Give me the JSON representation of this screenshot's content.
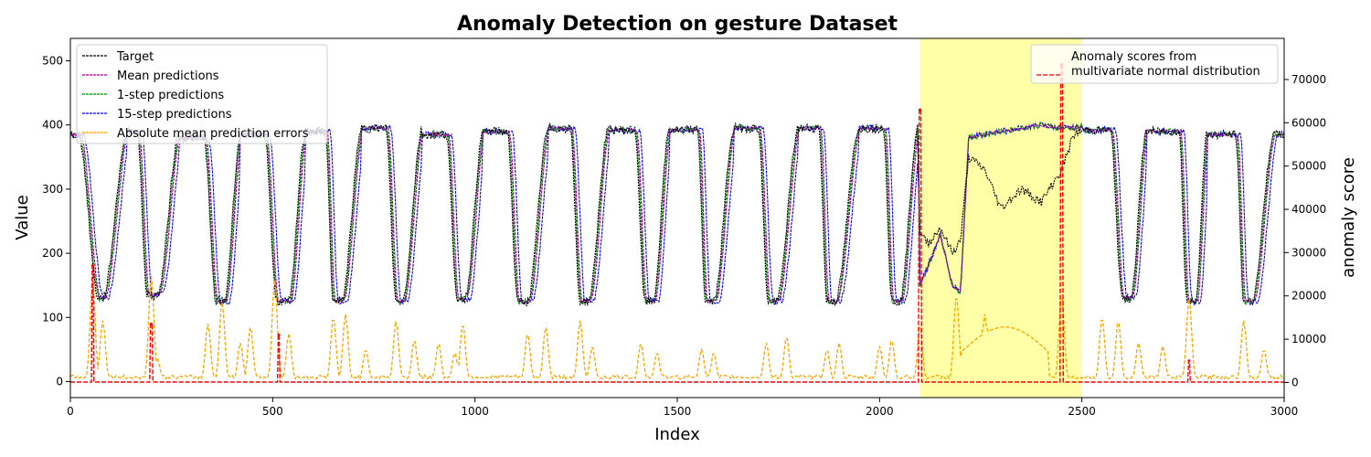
{
  "chart_data": {
    "type": "line",
    "title": "Anomaly Detection on gesture Dataset",
    "xlabel": "Index",
    "ylabel": "Value",
    "y2label": "anomaly score",
    "xlim": [
      0,
      3000
    ],
    "ylim": [
      -25,
      535
    ],
    "y2lim": [
      -3500,
      79500
    ],
    "xticks": [
      0,
      500,
      1000,
      1500,
      2000,
      2500,
      3000
    ],
    "yticks": [
      0,
      100,
      200,
      300,
      400,
      500
    ],
    "y2ticks": [
      0,
      10000,
      20000,
      30000,
      40000,
      50000,
      60000,
      70000
    ],
    "grid": false,
    "legend_left_placement": "upper-left",
    "legend_right_placement": "upper-right",
    "highlight_region": {
      "x": [
        2100,
        2500
      ],
      "color": "#ffff99"
    },
    "colors": {
      "target": "#000000",
      "mean": "#990099",
      "one_step": "#008800",
      "fifteen_step": "#0000ff",
      "error": "#ffa500",
      "anomaly": "#ff0000"
    },
    "cycles": [
      {
        "x0": 0,
        "low": 385,
        "fall": [
          20,
          70
        ],
        "min": 130,
        "rise": [
          80,
          140
        ]
      },
      {
        "x0": 140,
        "low": 390,
        "fall": [
          165,
          190
        ],
        "min": 135,
        "rise": [
          215,
          270
        ]
      },
      {
        "x0": 270,
        "low": 380,
        "fall": [
          330,
          360
        ],
        "min": 125,
        "rise": [
          380,
          420
        ]
      },
      {
        "x0": 420,
        "low": 385,
        "fall": [
          480,
          510
        ],
        "min": 125,
        "rise": [
          540,
          580
        ]
      },
      {
        "x0": 580,
        "low": 390,
        "fall": [
          630,
          650
        ],
        "min": 125,
        "rise": [
          670,
          720
        ]
      },
      {
        "x0": 720,
        "low": 395,
        "fall": [
          780,
          805
        ],
        "min": 125,
        "rise": [
          820,
          870
        ]
      },
      {
        "x0": 870,
        "low": 385,
        "fall": [
          930,
          955
        ],
        "min": 130,
        "rise": [
          975,
          1020
        ]
      },
      {
        "x0": 1020,
        "low": 390,
        "fall": [
          1080,
          1105
        ],
        "min": 125,
        "rise": [
          1130,
          1180
        ]
      },
      {
        "x0": 1180,
        "low": 395,
        "fall": [
          1235,
          1260
        ],
        "min": 125,
        "rise": [
          1280,
          1330
        ]
      },
      {
        "x0": 1330,
        "low": 392,
        "fall": [
          1395,
          1420
        ],
        "min": 125,
        "rise": [
          1440,
          1480
        ]
      },
      {
        "x0": 1480,
        "low": 392,
        "fall": [
          1550,
          1570
        ],
        "min": 125,
        "rise": [
          1590,
          1640
        ]
      },
      {
        "x0": 1640,
        "low": 395,
        "fall": [
          1700,
          1725
        ],
        "min": 125,
        "rise": [
          1745,
          1800
        ]
      },
      {
        "x0": 1800,
        "low": 395,
        "fall": [
          1850,
          1870
        ],
        "min": 125,
        "rise": [
          1890,
          1950
        ]
      },
      {
        "x0": 1950,
        "low": 395,
        "fall": [
          2010,
          2030
        ],
        "min": 125,
        "rise": [
          2050,
          2095
        ]
      }
    ],
    "anomaly_segment": {
      "x": [
        2095,
        2100,
        2120,
        2150,
        2180,
        2200,
        2220,
        2260,
        2300,
        2350,
        2400,
        2450,
        2480,
        2500
      ],
      "target": [
        390,
        230,
        215,
        240,
        200,
        220,
        350,
        330,
        270,
        300,
        280,
        330,
        385,
        390
      ],
      "predictions": [
        395,
        150,
        180,
        230,
        150,
        140,
        380,
        385,
        390,
        395,
        400,
        395,
        395,
        398
      ]
    },
    "tail_cycles": [
      {
        "x0": 2500,
        "low": 392,
        "fall": [
          2570,
          2600
        ],
        "min": 130,
        "rise": [
          2620,
          2660
        ]
      },
      {
        "x0": 2660,
        "low": 390,
        "fall": [
          2740,
          2760
        ],
        "min": 125,
        "rise": [
          2780,
          2810
        ]
      },
      {
        "x0": 2810,
        "low": 385,
        "fall": [
          2880,
          2900
        ],
        "min": 125,
        "rise": [
          2920,
          2975
        ]
      }
    ],
    "error_peaks": [
      {
        "x": 55,
        "y": 155
      },
      {
        "x": 80,
        "y": 95
      },
      {
        "x": 200,
        "y": 165
      },
      {
        "x": 215,
        "y": 35
      },
      {
        "x": 340,
        "y": 90
      },
      {
        "x": 375,
        "y": 125
      },
      {
        "x": 420,
        "y": 60
      },
      {
        "x": 445,
        "y": 85
      },
      {
        "x": 505,
        "y": 160
      },
      {
        "x": 540,
        "y": 75
      },
      {
        "x": 650,
        "y": 100
      },
      {
        "x": 680,
        "y": 105
      },
      {
        "x": 730,
        "y": 50
      },
      {
        "x": 805,
        "y": 95
      },
      {
        "x": 850,
        "y": 65
      },
      {
        "x": 910,
        "y": 60
      },
      {
        "x": 950,
        "y": 45
      },
      {
        "x": 970,
        "y": 90
      },
      {
        "x": 1130,
        "y": 75
      },
      {
        "x": 1175,
        "y": 85
      },
      {
        "x": 1260,
        "y": 95
      },
      {
        "x": 1290,
        "y": 55
      },
      {
        "x": 1410,
        "y": 60
      },
      {
        "x": 1450,
        "y": 45
      },
      {
        "x": 1560,
        "y": 50
      },
      {
        "x": 1590,
        "y": 45
      },
      {
        "x": 1720,
        "y": 60
      },
      {
        "x": 1770,
        "y": 70
      },
      {
        "x": 1870,
        "y": 50
      },
      {
        "x": 1900,
        "y": 60
      },
      {
        "x": 2000,
        "y": 55
      },
      {
        "x": 2030,
        "y": 65
      },
      {
        "x": 2100,
        "y": 85
      },
      {
        "x": 2190,
        "y": 135
      },
      {
        "x": 2260,
        "y": 105
      },
      {
        "x": 2320,
        "y": 60
      },
      {
        "x": 2450,
        "y": 135
      },
      {
        "x": 2550,
        "y": 100
      },
      {
        "x": 2590,
        "y": 95
      },
      {
        "x": 2640,
        "y": 60
      },
      {
        "x": 2700,
        "y": 55
      },
      {
        "x": 2765,
        "y": 130
      },
      {
        "x": 2900,
        "y": 95
      },
      {
        "x": 2950,
        "y": 50
      }
    ],
    "anomaly_spikes": [
      {
        "x": 55,
        "y": 27000
      },
      {
        "x": 200,
        "y": 13500
      },
      {
        "x": 515,
        "y": 11000
      },
      {
        "x": 2100,
        "y": 63000
      },
      {
        "x": 2450,
        "y": 73500
      },
      {
        "x": 2765,
        "y": 5000
      }
    ],
    "legend_left": [
      {
        "label": "Target",
        "key": "target"
      },
      {
        "label": "Mean predictions",
        "key": "mean"
      },
      {
        "label": "1-step predictions",
        "key": "one_step"
      },
      {
        "label": "15-step predictions",
        "key": "fifteen_step"
      },
      {
        "label": "Absolute mean prediction errors",
        "key": "error"
      }
    ],
    "legend_right": [
      {
        "label": "Anomaly scores from",
        "key": "anomaly"
      },
      {
        "label": "multivariate normal distribution",
        "key": "anomaly"
      }
    ]
  }
}
